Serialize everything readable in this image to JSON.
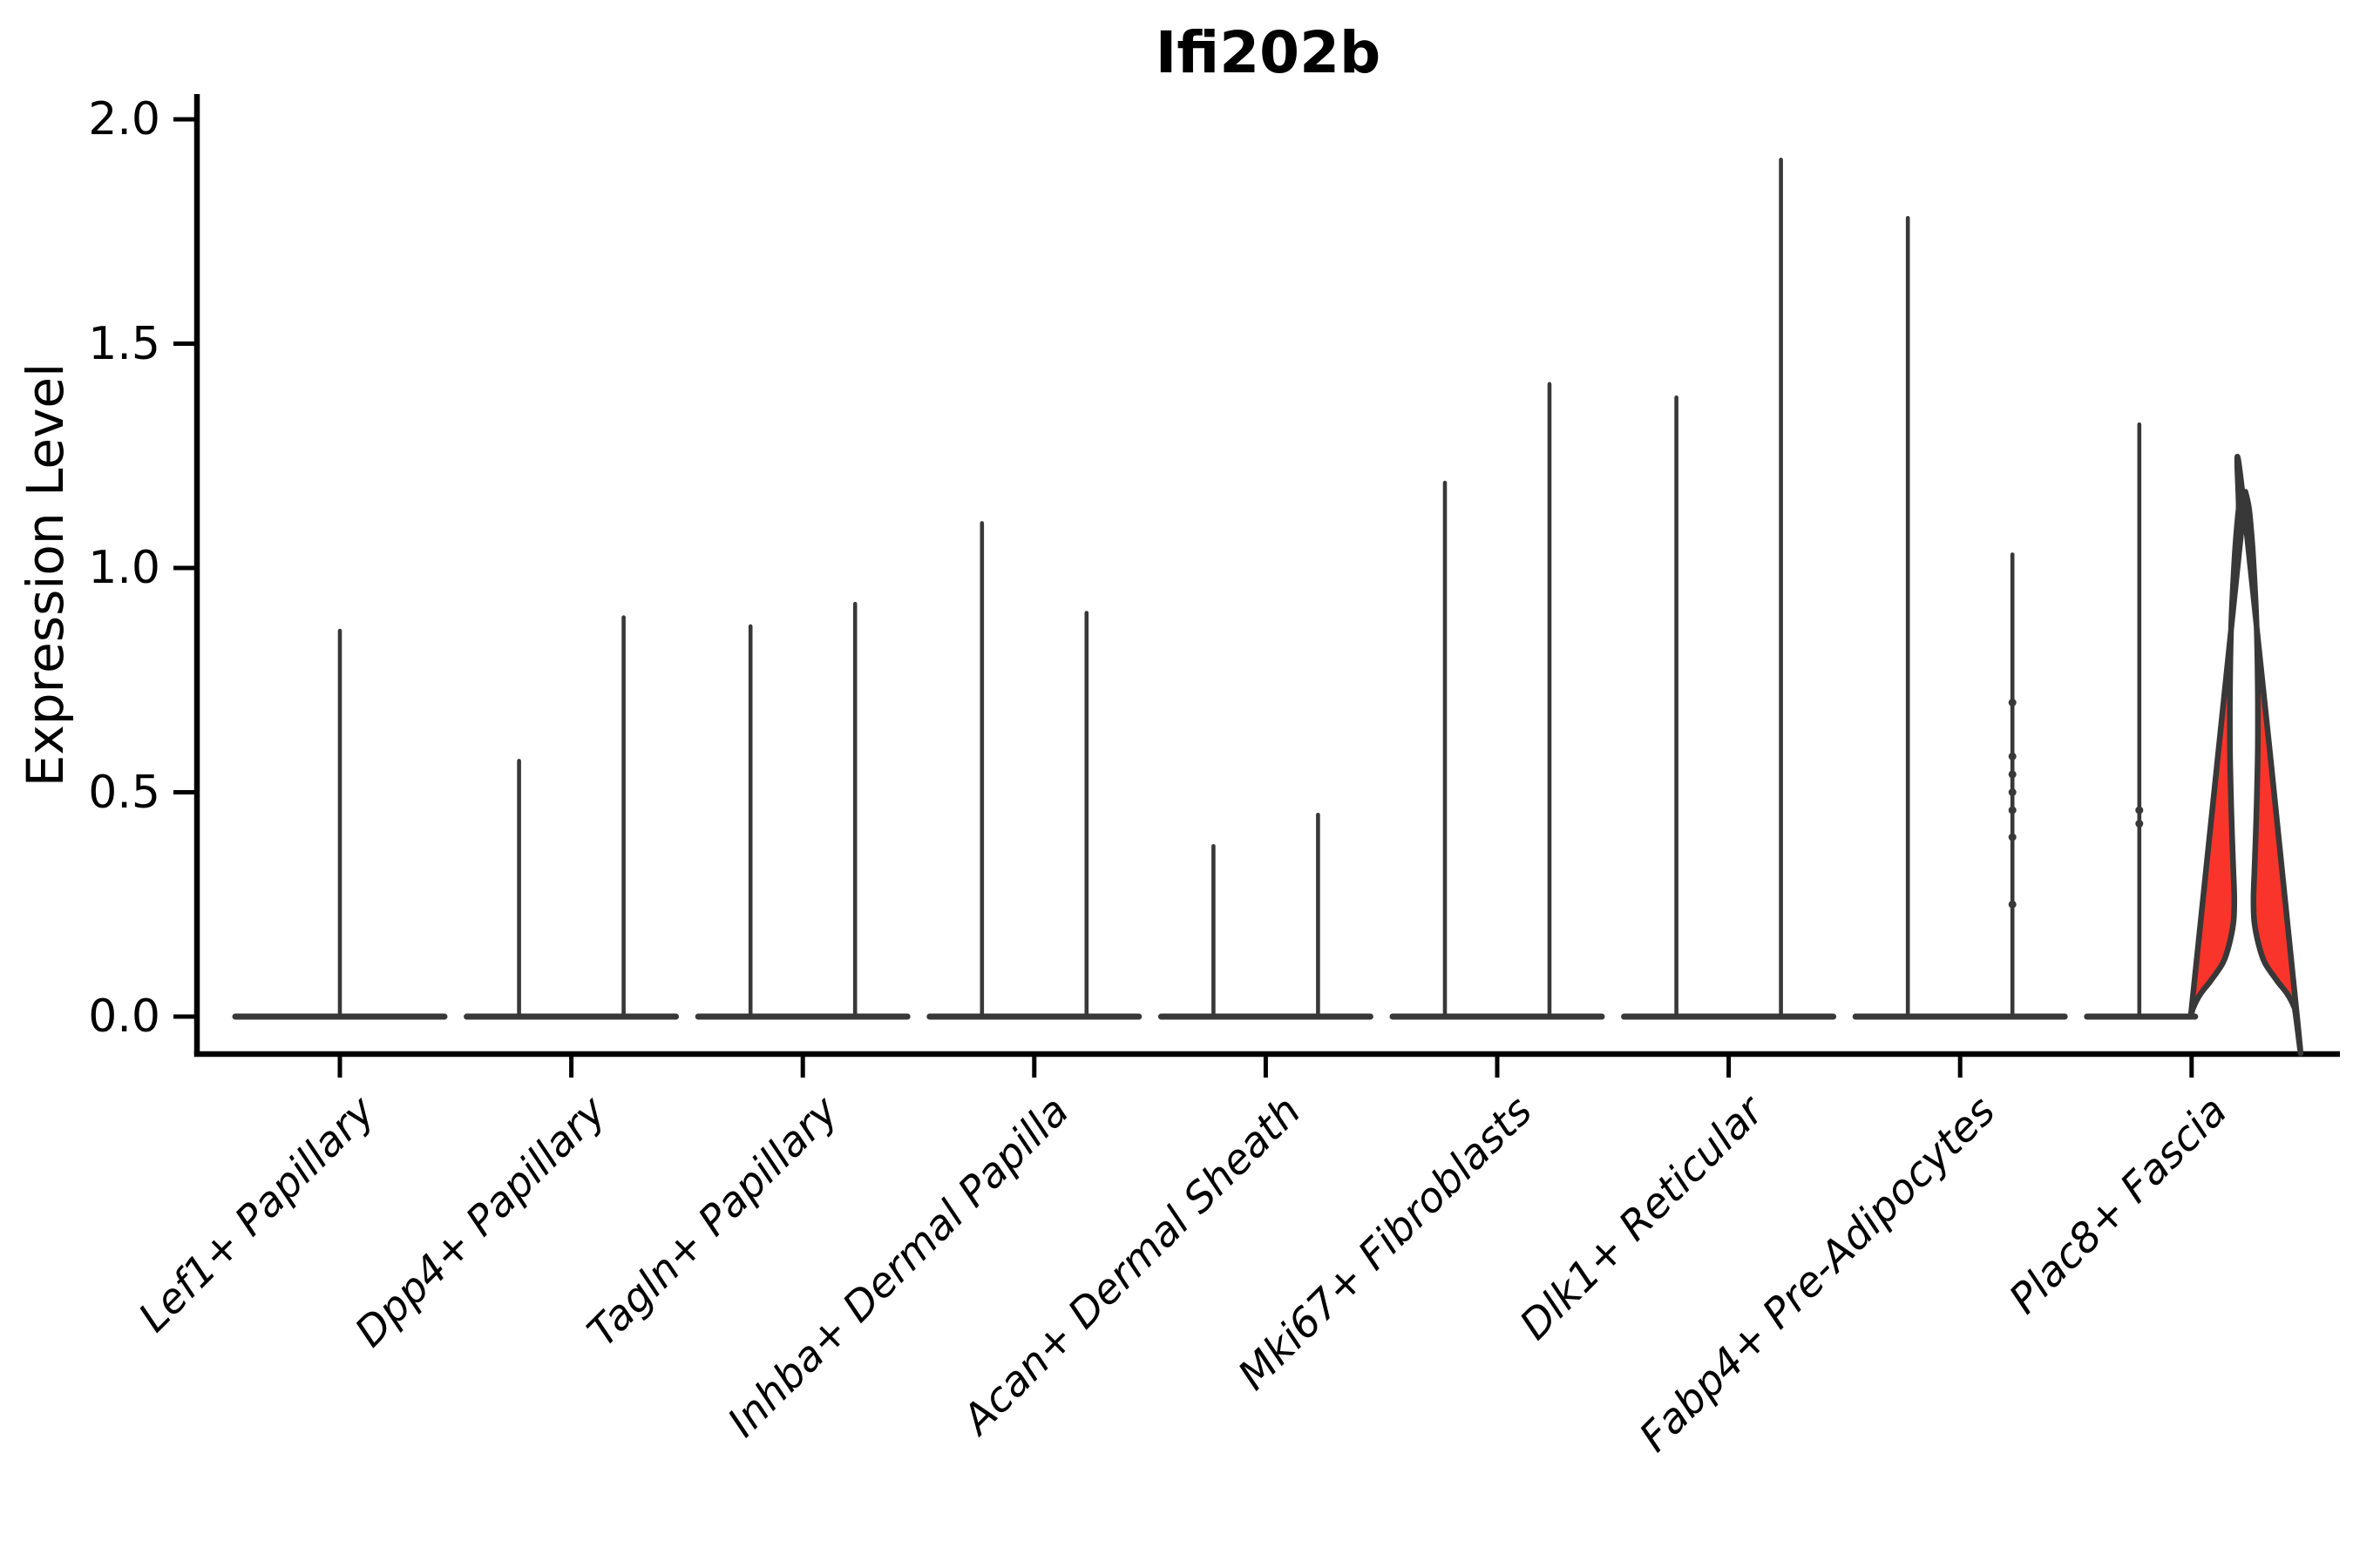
{
  "title": "Ifi202b",
  "y_axis": {
    "label": "Expression Level",
    "tick_labels": [
      "0.0",
      "0.5",
      "1.0",
      "1.5",
      "2.0"
    ]
  },
  "colors": {
    "background": "#ffffff",
    "violin_stroke": "#383838",
    "axis": "#000000",
    "text": "#000000",
    "highlight_fill": "#f9342a"
  },
  "chart_data": {
    "type": "violin",
    "title": "Ifi202b",
    "xlabel": "",
    "ylabel": "Expression Level",
    "ylim": [
      0,
      2.0
    ],
    "yticks": [
      0.0,
      0.5,
      1.0,
      1.5,
      2.0
    ],
    "grid": false,
    "legend": "none",
    "categories": [
      "Lef1+ Papillary",
      "Dpp4+ Papillary",
      "Tagln+ Papillary",
      "Inhba+ Dermal Papilla",
      "Acan+ Dermal Sheath",
      "Mki67+ Fibroblasts",
      "Dlk1+ Reticular",
      "Fabp4+ Pre-Adipocytes",
      "Plac8+ Fascia"
    ],
    "groups": [
      {
        "category": "Lef1+ Papillary",
        "violins": [
          {
            "pos": "center",
            "max": 0.86,
            "style": "spike"
          }
        ]
      },
      {
        "category": "Dpp4+ Papillary",
        "violins": [
          {
            "pos": "left",
            "max": 0.57,
            "style": "spike"
          },
          {
            "pos": "right",
            "max": 0.89,
            "style": "spike"
          }
        ]
      },
      {
        "category": "Tagln+ Papillary",
        "violins": [
          {
            "pos": "left",
            "max": 0.87,
            "style": "spike"
          },
          {
            "pos": "right",
            "max": 0.92,
            "style": "spike"
          }
        ]
      },
      {
        "category": "Inhba+ Dermal Papilla",
        "violins": [
          {
            "pos": "left",
            "max": 1.1,
            "style": "spike"
          },
          {
            "pos": "right",
            "max": 0.9,
            "style": "spike"
          }
        ]
      },
      {
        "category": "Acan+ Dermal Sheath",
        "violins": [
          {
            "pos": "left",
            "max": 0.38,
            "style": "spike"
          },
          {
            "pos": "right",
            "max": 0.45,
            "style": "spike"
          }
        ]
      },
      {
        "category": "Mki67+ Fibroblasts",
        "violins": [
          {
            "pos": "left",
            "max": 1.19,
            "style": "spike"
          },
          {
            "pos": "right",
            "max": 1.41,
            "style": "spike"
          }
        ]
      },
      {
        "category": "Dlk1+ Reticular",
        "violins": [
          {
            "pos": "left",
            "max": 1.38,
            "style": "spike"
          },
          {
            "pos": "right",
            "max": 1.91,
            "style": "spike"
          }
        ]
      },
      {
        "category": "Fabp4+ Pre-Adipocytes",
        "violins": [
          {
            "pos": "left",
            "max": 1.78,
            "style": "spike"
          },
          {
            "pos": "right",
            "max": 1.03,
            "style": "spike",
            "dots": [
              0.7,
              0.58,
              0.54,
              0.5,
              0.46,
              0.4,
              0.25
            ]
          }
        ]
      },
      {
        "category": "Plac8+ Fascia",
        "violins": [
          {
            "pos": "left",
            "max": 1.32,
            "style": "spike",
            "dots": [
              0.46,
              0.43
            ]
          },
          {
            "pos": "right",
            "max": 1.17,
            "style": "filled",
            "fill": "#f9342a",
            "profile": [
              [
                1.17,
                0.03
              ],
              [
                1.13,
                0.1
              ],
              [
                1.05,
                0.16
              ],
              [
                0.95,
                0.21
              ],
              [
                0.85,
                0.245
              ],
              [
                0.72,
                0.262
              ],
              [
                0.6,
                0.262
              ],
              [
                0.5,
                0.246
              ],
              [
                0.4,
                0.222
              ],
              [
                0.32,
                0.196
              ],
              [
                0.26,
                0.18
              ],
              [
                0.21,
                0.196
              ],
              [
                0.16,
                0.278
              ],
              [
                0.12,
                0.393
              ],
              [
                0.08,
                0.623
              ],
              [
                0.05,
                0.82
              ],
              [
                0.02,
                0.951
              ],
              [
                0.0,
                1.0
              ]
            ]
          }
        ]
      }
    ]
  }
}
